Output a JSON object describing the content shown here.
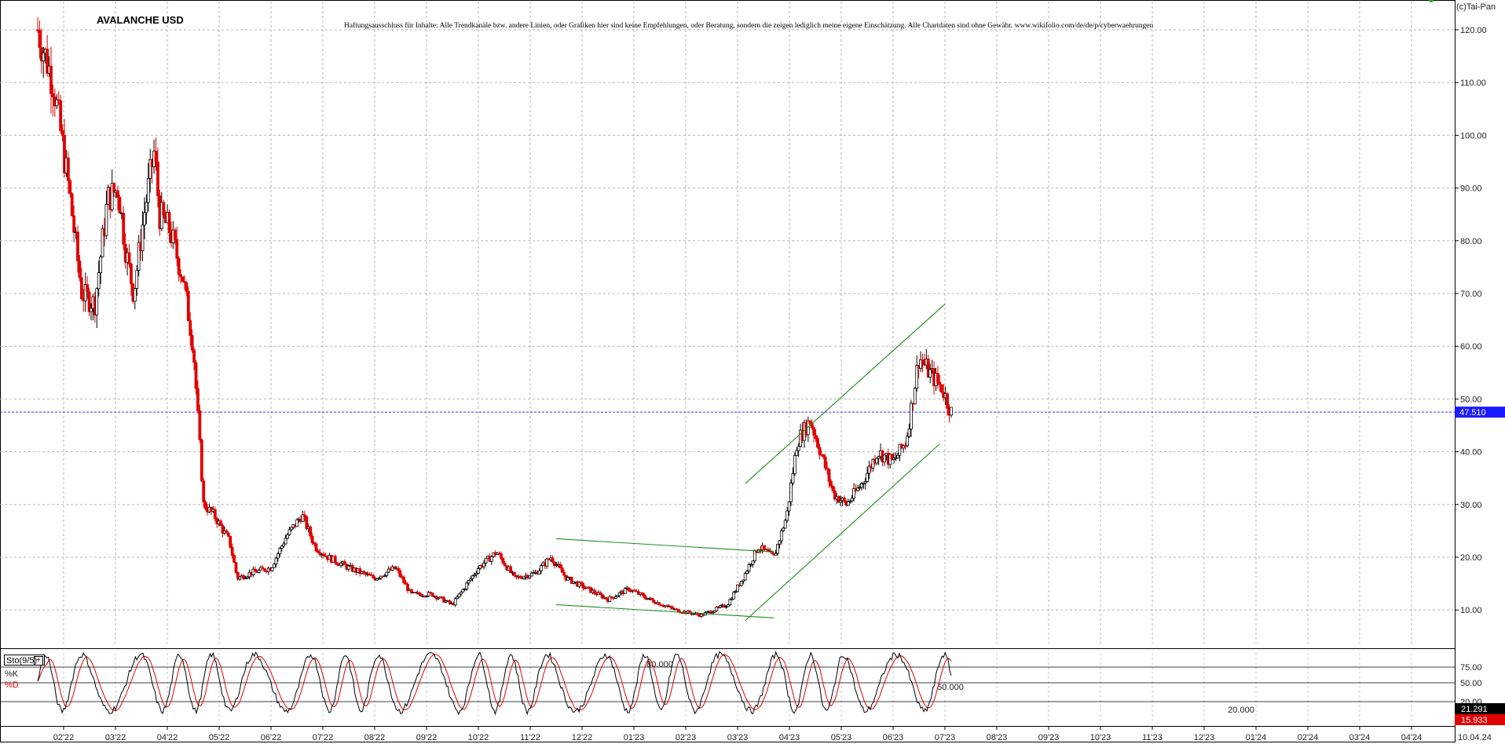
{
  "chart_data": [
    {
      "type": "candlestick",
      "title": "AVALANCHE USD",
      "copyright": "(c)Tai-Pan",
      "disclaimer": "Haftungsausschluss für Inhalte: Alle Trendkanäle bzw. andere Linien, oder Grafiken hier sind keine Empfehlungen, oder Beratung, sondern die zeigen lediglich meine eigene Einschätzung. Alle Chartdaten sind ohne Gewähr.  www.wikifolio.com/de/de/p/cyberwaehrungen",
      "y_ticks": [
        "120.00",
        "110.00",
        "100.00",
        "90.00",
        "80.00",
        "70.00",
        "60.00",
        "50.00",
        "40.00",
        "30.00",
        "20.00",
        "10.00"
      ],
      "ylim": [
        1,
        130
      ],
      "x_ticks": [
        "02'22",
        "03'22",
        "04'22",
        "05'22",
        "06'22",
        "07'22",
        "08'22",
        "09'22",
        "10'22",
        "11'22",
        "12'22",
        "01'23",
        "02'23",
        "03'23",
        "04'23",
        "05'23",
        "06'23",
        "07'23",
        "08'23",
        "09'23",
        "10'23",
        "11'23",
        "12'23",
        "01'24",
        "02'24",
        "03'24",
        "04'24"
      ],
      "last_date": "10.04.24",
      "current_price": {
        "label": "47.510",
        "value": 47.51
      },
      "grid": true,
      "price_anchors": [
        {
          "t": 0,
          "v": 120
        },
        {
          "t": 0.3,
          "v": 110
        },
        {
          "t": 0.6,
          "v": 90
        },
        {
          "t": 0.85,
          "v": 70
        },
        {
          "t": 1.1,
          "v": 68
        },
        {
          "t": 1.35,
          "v": 88
        },
        {
          "t": 1.55,
          "v": 90
        },
        {
          "t": 1.7,
          "v": 78
        },
        {
          "t": 1.85,
          "v": 70
        },
        {
          "t": 2.05,
          "v": 85
        },
        {
          "t": 2.25,
          "v": 97
        },
        {
          "t": 2.35,
          "v": 85
        },
        {
          "t": 2.55,
          "v": 82
        },
        {
          "t": 2.8,
          "v": 73
        },
        {
          "t": 3.0,
          "v": 60
        },
        {
          "t": 3.1,
          "v": 45
        },
        {
          "t": 3.2,
          "v": 30
        },
        {
          "t": 3.4,
          "v": 28
        },
        {
          "t": 3.7,
          "v": 23
        },
        {
          "t": 3.85,
          "v": 16
        },
        {
          "t": 4.1,
          "v": 17
        },
        {
          "t": 4.5,
          "v": 18
        },
        {
          "t": 4.8,
          "v": 24
        },
        {
          "t": 5.1,
          "v": 28
        },
        {
          "t": 5.35,
          "v": 22
        },
        {
          "t": 5.6,
          "v": 20
        },
        {
          "t": 6.0,
          "v": 18
        },
        {
          "t": 6.5,
          "v": 16
        },
        {
          "t": 6.9,
          "v": 18
        },
        {
          "t": 7.2,
          "v": 13
        },
        {
          "t": 7.6,
          "v": 13
        },
        {
          "t": 8.0,
          "v": 11
        },
        {
          "t": 8.5,
          "v": 18
        },
        {
          "t": 8.85,
          "v": 21
        },
        {
          "t": 9.2,
          "v": 16
        },
        {
          "t": 9.6,
          "v": 17
        },
        {
          "t": 9.9,
          "v": 20
        },
        {
          "t": 10.2,
          "v": 16
        },
        {
          "t": 10.6,
          "v": 14
        },
        {
          "t": 11.0,
          "v": 12
        },
        {
          "t": 11.4,
          "v": 14
        },
        {
          "t": 11.8,
          "v": 12
        },
        {
          "t": 12.3,
          "v": 10
        },
        {
          "t": 12.8,
          "v": 9
        },
        {
          "t": 13.3,
          "v": 11
        },
        {
          "t": 13.6,
          "v": 16
        },
        {
          "t": 13.9,
          "v": 22
        },
        {
          "t": 14.2,
          "v": 20
        },
        {
          "t": 14.45,
          "v": 28
        },
        {
          "t": 14.65,
          "v": 42
        },
        {
          "t": 14.9,
          "v": 46
        },
        {
          "t": 15.1,
          "v": 40
        },
        {
          "t": 15.35,
          "v": 32
        },
        {
          "t": 15.6,
          "v": 30
        },
        {
          "t": 15.9,
          "v": 34
        },
        {
          "t": 16.2,
          "v": 40
        },
        {
          "t": 16.5,
          "v": 38
        },
        {
          "t": 16.75,
          "v": 42
        },
        {
          "t": 17.0,
          "v": 58
        },
        {
          "t": 17.2,
          "v": 55
        },
        {
          "t": 17.45,
          "v": 52
        },
        {
          "t": 17.62,
          "v": 47.5
        }
      ],
      "trendlines": [
        {
          "x1": 10.0,
          "y1": 23.5,
          "x2": 14.2,
          "y2": 21.0
        },
        {
          "x1": 10.0,
          "y1": 11.0,
          "x2": 14.2,
          "y2": 8.5
        },
        {
          "x1": 13.65,
          "y1": 34.0,
          "x2": 17.5,
          "y2": 68.0
        },
        {
          "x1": 13.65,
          "y1": 8.0,
          "x2": 17.4,
          "y2": 41.5
        }
      ]
    },
    {
      "type": "stochastic",
      "indicator": "Sto(9/5)",
      "series": [
        {
          "name": "%K"
        },
        {
          "name": "%D"
        }
      ],
      "levels": [
        "75.00",
        "50.00",
        "20.00"
      ],
      "annotations": [
        "80.000",
        "50.000",
        "20.000"
      ],
      "last_values": {
        "k": "21.291",
        "d": "15.933"
      }
    }
  ]
}
